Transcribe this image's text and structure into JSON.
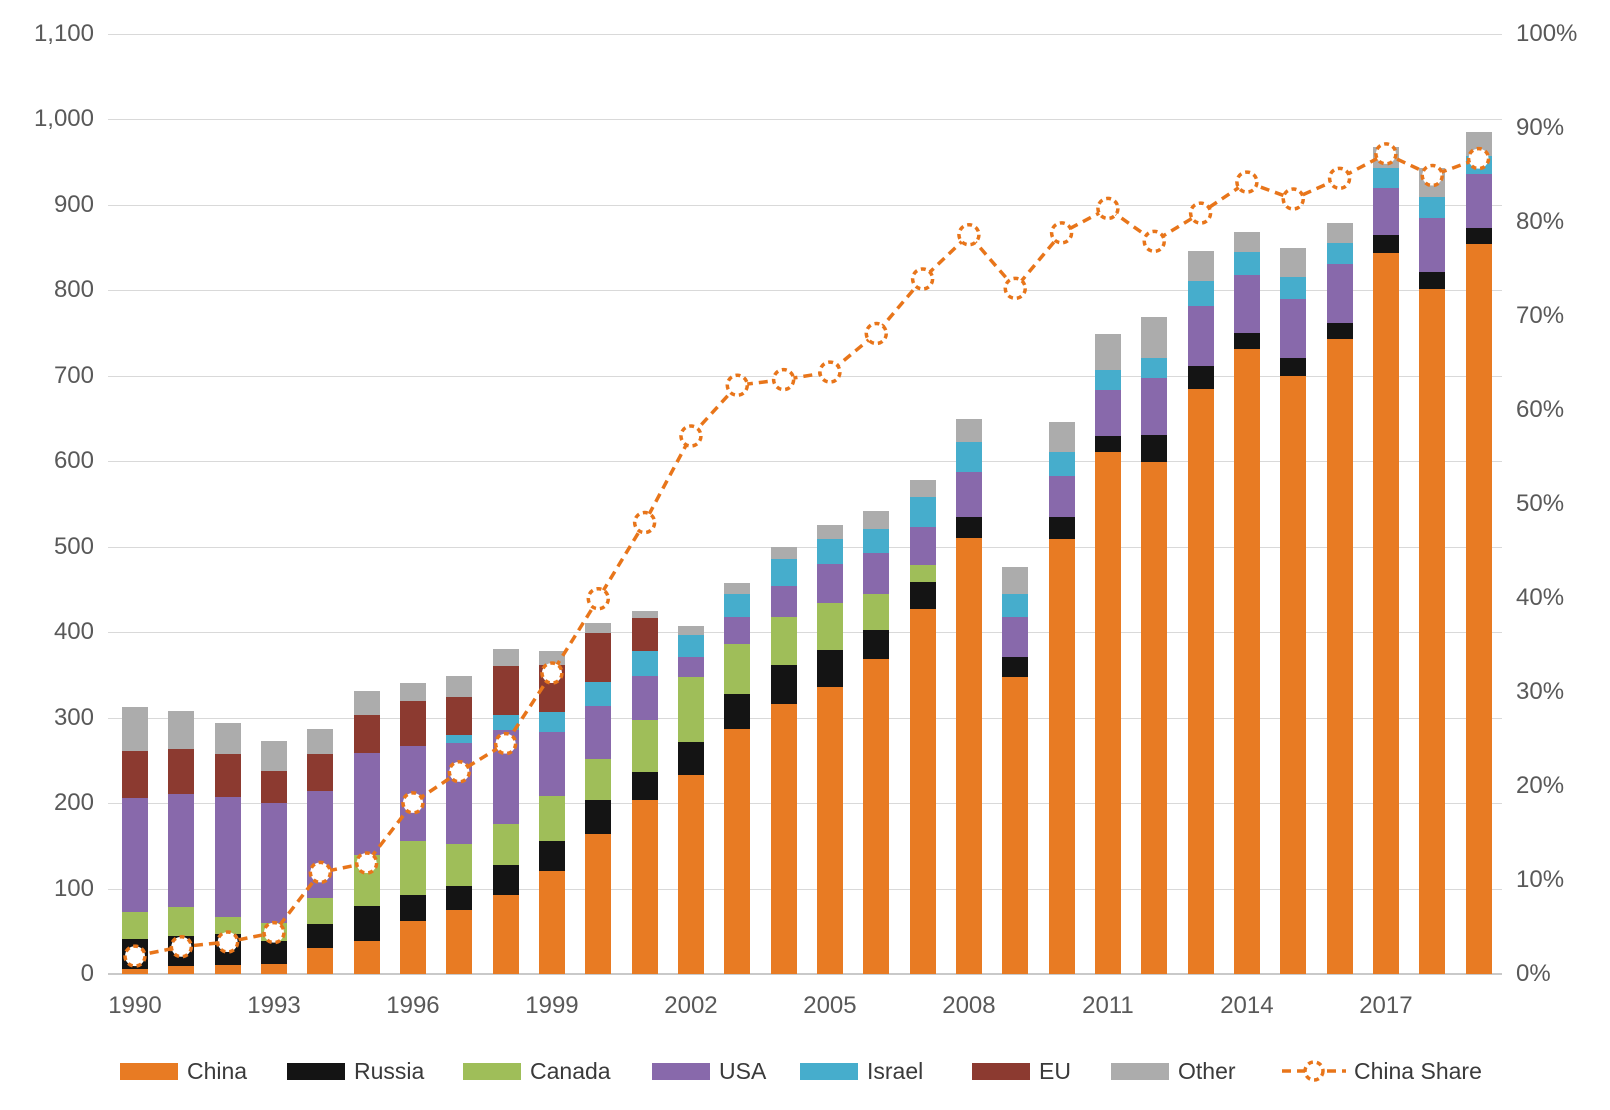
{
  "chart_data": {
    "type": "bar",
    "subtype": "stacked-bar-with-line",
    "title": "",
    "xlabel": "",
    "ylabel": "",
    "grid": true,
    "legend_position": "bottom",
    "years": [
      1990,
      1991,
      1992,
      1993,
      1994,
      1995,
      1996,
      1997,
      1998,
      1999,
      2000,
      2001,
      2002,
      2003,
      2004,
      2005,
      2006,
      2007,
      2008,
      2009,
      2010,
      2011,
      2012,
      2013,
      2014,
      2015,
      2016,
      2017,
      2018,
      2019
    ],
    "x_tick_labels": [
      "1990",
      "1993",
      "1996",
      "1999",
      "2002",
      "2005",
      "2008",
      "2011",
      "2014",
      "2017"
    ],
    "series": [
      {
        "name": "China",
        "color": "#e87b23",
        "values": [
          6,
          9,
          10,
          12,
          31,
          39,
          62,
          75,
          93,
          121,
          164,
          204,
          233,
          286,
          316,
          336,
          369,
          427,
          510,
          347,
          509,
          610,
          599,
          684,
          731,
          700,
          743,
          843,
          801,
          854
        ]
      },
      {
        "name": "Russia",
        "color": "#141414",
        "values": [
          35,
          36,
          37,
          27,
          28,
          41,
          30,
          28,
          35,
          34,
          39,
          32,
          38,
          42,
          46,
          43,
          33,
          31,
          25,
          24,
          25,
          19,
          32,
          27,
          19,
          20,
          18,
          21,
          20,
          19
        ]
      },
      {
        "name": "Canada",
        "color": "#9fbe59",
        "values": [
          31,
          33,
          20,
          21,
          30,
          59,
          64,
          49,
          48,
          53,
          48,
          61,
          76,
          58,
          55,
          55,
          42,
          20,
          0,
          0,
          0,
          0,
          0,
          0,
          0,
          0,
          0,
          0,
          0,
          0
        ]
      },
      {
        "name": "USA",
        "color": "#8869ab",
        "values": [
          134,
          133,
          140,
          140,
          125,
          119,
          111,
          118,
          110,
          75,
          62,
          52,
          24,
          32,
          37,
          46,
          48,
          45,
          52,
          46,
          49,
          54,
          66,
          70,
          67,
          69,
          70,
          55,
          63,
          63
        ]
      },
      {
        "name": "Israel",
        "color": "#46adcc",
        "values": [
          0,
          0,
          0,
          0,
          0,
          0,
          0,
          10,
          17,
          24,
          28,
          29,
          26,
          27,
          31,
          29,
          29,
          35,
          35,
          28,
          27,
          24,
          23,
          29,
          27,
          26,
          24,
          24,
          25,
          21
        ]
      },
      {
        "name": "EU",
        "color": "#8c3a30",
        "values": [
          55,
          52,
          50,
          38,
          43,
          45,
          52,
          44,
          57,
          55,
          58,
          38,
          0,
          0,
          0,
          0,
          0,
          0,
          0,
          0,
          0,
          0,
          0,
          0,
          0,
          0,
          0,
          0,
          0,
          0
        ]
      },
      {
        "name": "Other",
        "color": "#acacac",
        "values": [
          51,
          45,
          37,
          35,
          30,
          28,
          21,
          25,
          20,
          16,
          12,
          9,
          10,
          12,
          15,
          16,
          21,
          20,
          27,
          31,
          36,
          42,
          49,
          36,
          24,
          34,
          23,
          24,
          34,
          28
        ]
      }
    ],
    "line_series": {
      "name": "China Share",
      "color": "#e8751a",
      "axis": "right",
      "values_pct": [
        1.9,
        2.9,
        3.4,
        4.4,
        10.8,
        11.8,
        18.2,
        21.5,
        24.5,
        32.0,
        39.9,
        48.0,
        57.2,
        62.6,
        63.2,
        64.0,
        68.1,
        73.9,
        78.6,
        72.9,
        78.8,
        81.4,
        77.9,
        80.9,
        84.2,
        82.4,
        84.6,
        87.2,
        84.9,
        86.7
      ]
    },
    "left_axis": {
      "min": 0,
      "max": 1100,
      "step": 100,
      "tick_labels": [
        "0",
        "100",
        "200",
        "300",
        "400",
        "500",
        "600",
        "700",
        "800",
        "900",
        "1,000",
        "1,100"
      ]
    },
    "right_axis": {
      "min": 0,
      "max": 100,
      "step": 10,
      "tick_labels": [
        "0%",
        "10%",
        "20%",
        "30%",
        "40%",
        "50%",
        "60%",
        "70%",
        "80%",
        "90%",
        "100%"
      ]
    }
  },
  "legend": {
    "items": [
      {
        "label": "China",
        "color": "#e87b23",
        "type": "swatch"
      },
      {
        "label": "Russia",
        "color": "#141414",
        "type": "swatch"
      },
      {
        "label": "Canada",
        "color": "#9fbe59",
        "type": "swatch"
      },
      {
        "label": "USA",
        "color": "#8869ab",
        "type": "swatch"
      },
      {
        "label": "Israel",
        "color": "#46adcc",
        "type": "swatch"
      },
      {
        "label": "EU",
        "color": "#8c3a30",
        "type": "swatch"
      },
      {
        "label": "Other",
        "color": "#acacac",
        "type": "swatch"
      },
      {
        "label": "China Share",
        "color": "#e8751a",
        "type": "dashed-line-marker"
      }
    ]
  }
}
